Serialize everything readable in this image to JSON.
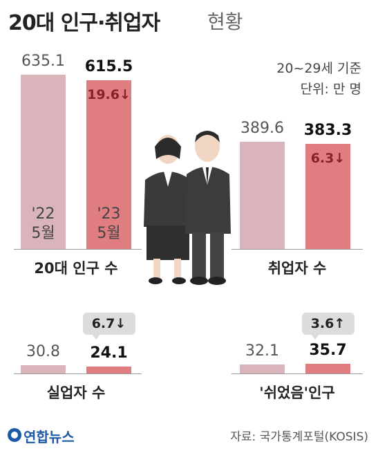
{
  "title": "20대 인구·취업자",
  "title_suffix": "현황",
  "note": "20~29세 기준",
  "unit": "단위: 만 명",
  "source": "자료: 국가통계포털(KOSIS)",
  "logo": "연합뉴스",
  "chart_data": [
    {
      "type": "bar",
      "title": "20대 인구 수",
      "categories": [
        "'22 5월",
        "'23 5월"
      ],
      "values": [
        635.1,
        615.5
      ],
      "colors": [
        "#d9b5bb",
        "#e07d81"
      ],
      "change_label": "19.6↓"
    },
    {
      "type": "bar",
      "title": "취업자 수",
      "categories": [
        null,
        null
      ],
      "values": [
        389.6,
        383.3
      ],
      "colors": [
        "#d9b5bb",
        "#e07d81"
      ],
      "change_label": "6.3↓"
    },
    {
      "type": "bar",
      "title": "실업자 수",
      "categories": [
        null,
        null
      ],
      "values": [
        30.8,
        24.1
      ],
      "colors": [
        "#d9b5bb",
        "#e07d81"
      ],
      "change_label": "6.7↓"
    },
    {
      "type": "bar",
      "title": "'쉬었음'인구",
      "categories": [
        null,
        null
      ],
      "values": [
        32.1,
        35.7
      ],
      "colors": [
        "#d9b5bb",
        "#e07d81"
      ],
      "change_label": "3.6↑"
    }
  ]
}
